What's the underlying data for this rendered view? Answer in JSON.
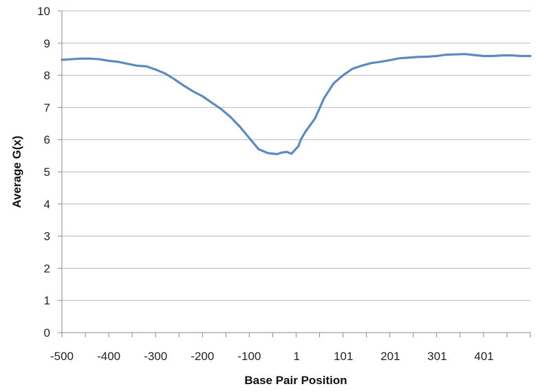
{
  "chart_data": {
    "type": "line",
    "title": "",
    "xlabel": "Base Pair Position",
    "ylabel": "Average G(x)",
    "xlim": [
      -500,
      500
    ],
    "ylim": [
      0,
      10
    ],
    "grid": "horizontal",
    "legend": "none",
    "x_tick_labels": [
      "-500",
      "-400",
      "-300",
      "-200",
      "-100",
      "1",
      "101",
      "201",
      "301",
      "401"
    ],
    "x_tick_values": [
      -500,
      -400,
      -300,
      -200,
      -100,
      1,
      101,
      201,
      301,
      401
    ],
    "y_tick_labels": [
      "0",
      "1",
      "2",
      "3",
      "4",
      "5",
      "6",
      "7",
      "8",
      "9",
      "10"
    ],
    "y_tick_values": [
      0,
      1,
      2,
      3,
      4,
      5,
      6,
      7,
      8,
      9,
      10
    ],
    "colors": {
      "line": "#5b8ac3",
      "grid": "#b8b8b8",
      "axis": "#888888"
    },
    "series": [
      {
        "x": [
          -500,
          -480,
          -460,
          -440,
          -420,
          -400,
          -380,
          -360,
          -340,
          -320,
          -300,
          -280,
          -260,
          -240,
          -220,
          -200,
          -180,
          -160,
          -140,
          -120,
          -100,
          -80,
          -60,
          -40,
          -30,
          -20,
          -10,
          0,
          5,
          10,
          20,
          40,
          60,
          80,
          100,
          120,
          140,
          160,
          180,
          200,
          220,
          240,
          260,
          280,
          300,
          320,
          340,
          360,
          380,
          400,
          420,
          440,
          460,
          480,
          500
        ],
        "values": [
          8.48,
          8.5,
          8.52,
          8.52,
          8.5,
          8.45,
          8.42,
          8.36,
          8.3,
          8.28,
          8.18,
          8.06,
          7.88,
          7.68,
          7.5,
          7.35,
          7.15,
          6.95,
          6.7,
          6.4,
          6.05,
          5.7,
          5.58,
          5.55,
          5.6,
          5.62,
          5.56,
          5.72,
          5.8,
          6.0,
          6.25,
          6.65,
          7.3,
          7.75,
          8.0,
          8.2,
          8.3,
          8.38,
          8.42,
          8.47,
          8.53,
          8.55,
          8.57,
          8.58,
          8.6,
          8.64,
          8.65,
          8.66,
          8.63,
          8.6,
          8.6,
          8.62,
          8.62,
          8.6,
          8.6
        ]
      }
    ]
  }
}
